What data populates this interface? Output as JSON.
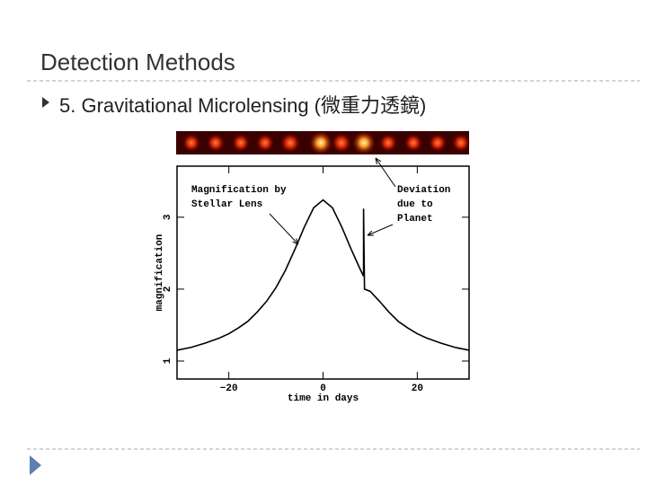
{
  "title": "Detection Methods",
  "bullet": "5. Gravitational Microlensing (微重力透鏡)",
  "chart_data": {
    "type": "line",
    "x_label": "time in days",
    "y_label": "magnification",
    "annotations": [
      [
        "Magnification by",
        "Stellar Lens"
      ],
      [
        "Deviation",
        "due to",
        "Planet"
      ]
    ],
    "x": [
      -31,
      -28,
      -25,
      -22,
      -20,
      -18,
      -16,
      -14,
      -12,
      -10,
      -8,
      -6,
      -4,
      -2,
      0,
      2,
      4,
      6,
      8,
      8.6,
      8.6,
      8.8,
      10,
      12,
      14,
      16,
      18,
      20,
      22,
      25,
      28,
      31
    ],
    "values": [
      1.15,
      1.19,
      1.25,
      1.32,
      1.38,
      1.46,
      1.55,
      1.68,
      1.83,
      2.02,
      2.26,
      2.55,
      2.86,
      3.13,
      3.24,
      3.13,
      2.86,
      2.55,
      2.26,
      2.18,
      3.12,
      2.0,
      1.97,
      1.83,
      1.68,
      1.55,
      1.46,
      1.38,
      1.32,
      1.25,
      1.19,
      1.15
    ],
    "color": "#000000",
    "xlim": [
      -31,
      31
    ],
    "ylim": [
      0.75,
      3.71
    ],
    "xticks": [
      {
        "value": -20,
        "label": "−20"
      },
      0,
      20
    ],
    "yticks": [
      1,
      2,
      3
    ]
  }
}
